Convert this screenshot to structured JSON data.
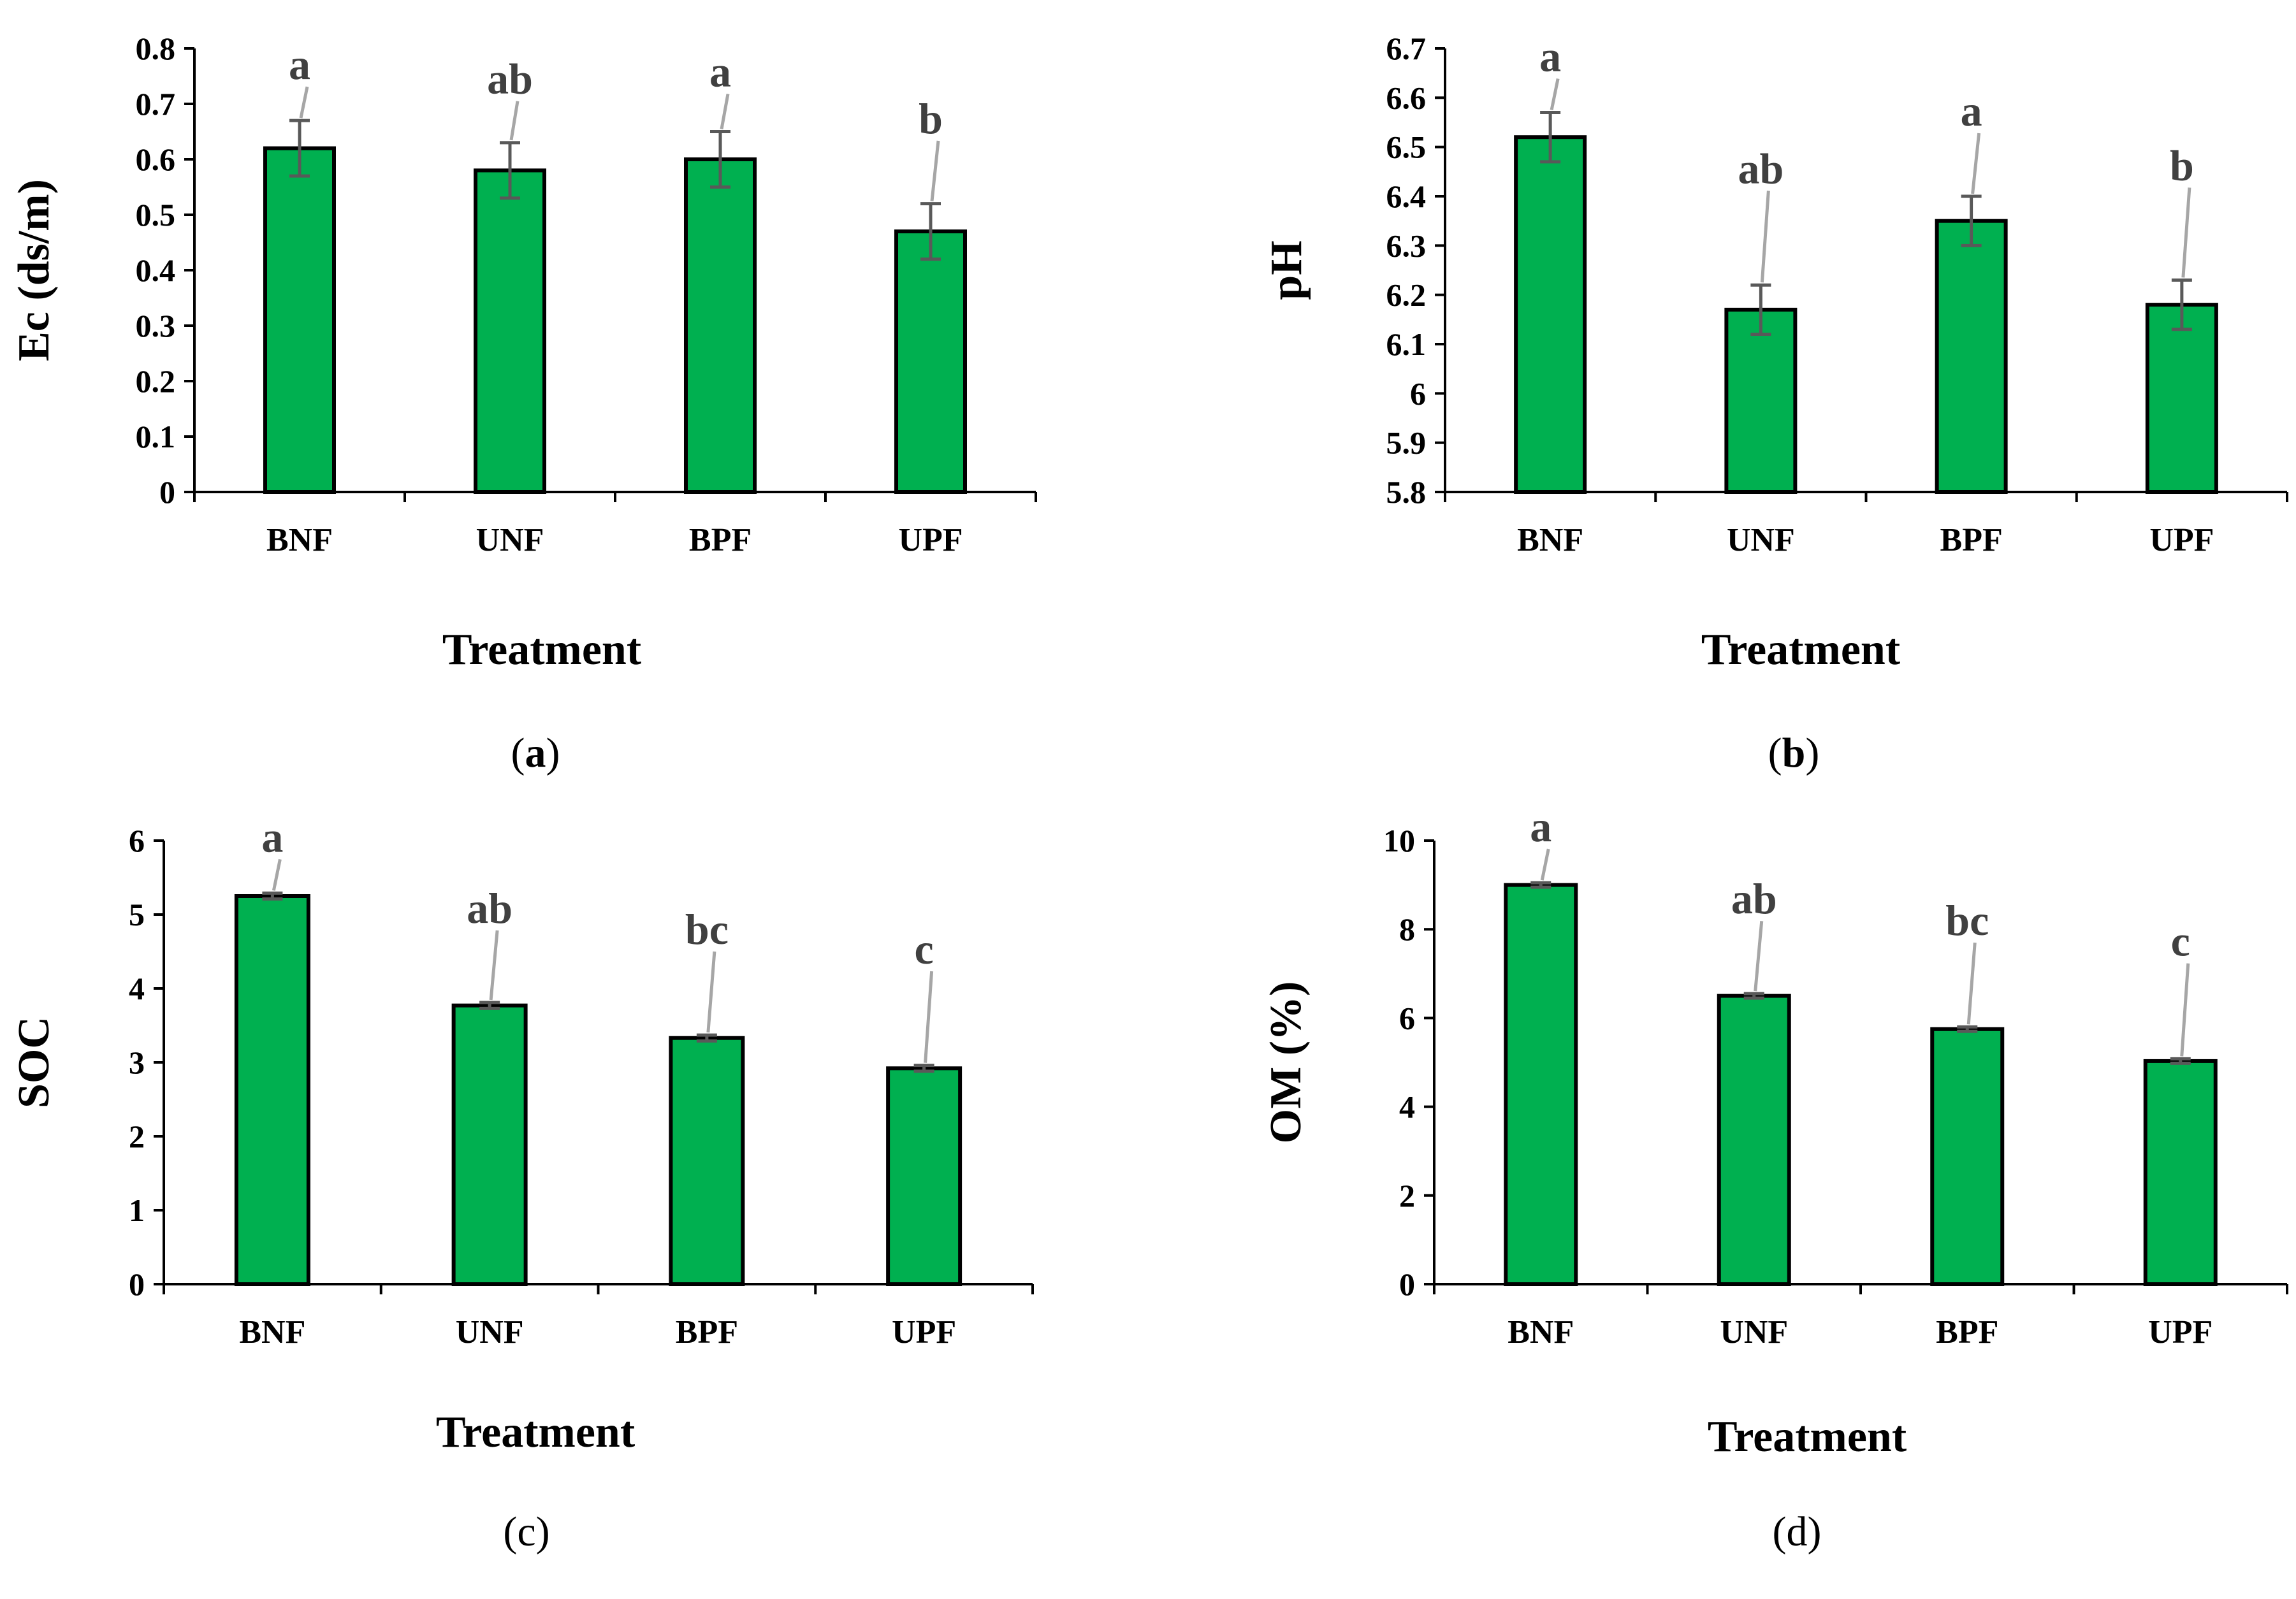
{
  "colors": {
    "bar_fill": "#00b050",
    "bar_stroke": "#000000",
    "error_bar": "#595959",
    "leader": "#a6a6a6",
    "sig_text": "#404040"
  },
  "chart_data": [
    {
      "type": "bar",
      "panel": "a",
      "categories": [
        "BNF",
        "UNF",
        "BPF",
        "UPF"
      ],
      "values": [
        0.62,
        0.58,
        0.6,
        0.47
      ],
      "errors": [
        0.05,
        0.05,
        0.05,
        0.05
      ],
      "significance": [
        "a",
        "ab",
        "a",
        "b"
      ],
      "xlabel": "Treatment",
      "ylabel": "Ec (ds/m)",
      "ylim": [
        0,
        0.8
      ],
      "yticks": [
        "0",
        "0.1",
        "0.2",
        "0.3",
        "0.4",
        "0.5",
        "0.6",
        "0.7",
        "0.8"
      ],
      "grid": false,
      "legend": "none"
    },
    {
      "type": "bar",
      "panel": "b",
      "categories": [
        "BNF",
        "UNF",
        "BPF",
        "UPF"
      ],
      "values": [
        6.52,
        6.17,
        6.35,
        6.18
      ],
      "errors": [
        0.05,
        0.05,
        0.05,
        0.05
      ],
      "significance": [
        "a",
        "ab",
        "a",
        "b"
      ],
      "xlabel": "Treatment",
      "ylabel": "pH",
      "ylim": [
        5.8,
        6.7
      ],
      "yticks": [
        "5.8",
        "5.9",
        "6",
        "6.1",
        "6.2",
        "6.3",
        "6.4",
        "6.5",
        "6.6",
        "6.7"
      ],
      "grid": false,
      "legend": "none"
    },
    {
      "type": "bar",
      "panel": "c",
      "categories": [
        "BNF",
        "UNF",
        "BPF",
        "UPF"
      ],
      "values": [
        5.25,
        3.77,
        3.33,
        2.92
      ],
      "errors": [
        0.04,
        0.04,
        0.04,
        0.04
      ],
      "significance": [
        "a",
        "ab",
        "bc",
        "c"
      ],
      "xlabel": "Treatment",
      "ylabel": "SOC",
      "ylim": [
        0,
        6
      ],
      "yticks": [
        "0",
        "1",
        "2",
        "3",
        "4",
        "5",
        "6"
      ],
      "grid": false,
      "legend": "none"
    },
    {
      "type": "bar",
      "panel": "d",
      "categories": [
        "BNF",
        "UNF",
        "BPF",
        "UPF"
      ],
      "values": [
        9.0,
        6.5,
        5.75,
        5.03
      ],
      "errors": [
        0.05,
        0.05,
        0.05,
        0.05
      ],
      "significance": [
        "a",
        "ab",
        "bc",
        "c"
      ],
      "xlabel": "Treatment",
      "ylabel": "OM (%)",
      "ylim": [
        0,
        10
      ],
      "yticks": [
        "0",
        "2",
        "4",
        "6",
        "8",
        "10"
      ],
      "grid": false,
      "legend": "none"
    }
  ]
}
